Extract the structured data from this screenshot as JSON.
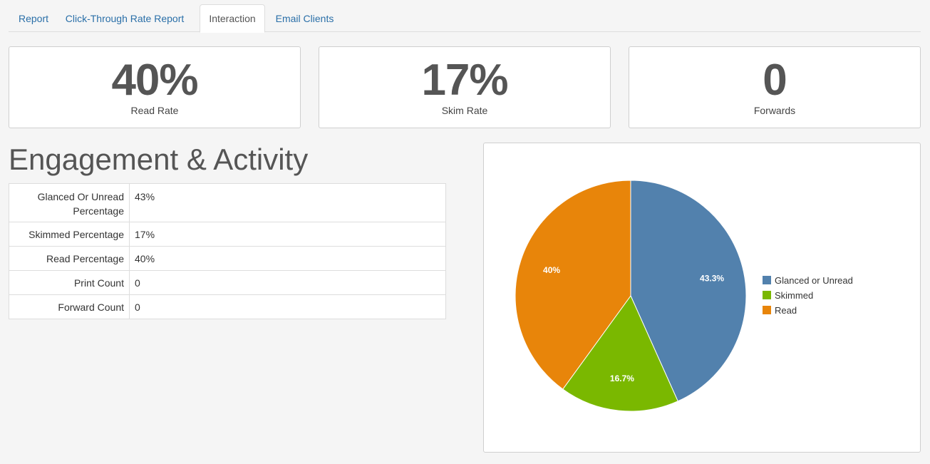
{
  "tabs": [
    {
      "label": "Report",
      "active": false
    },
    {
      "label": "Click-Through Rate Report",
      "active": false
    },
    {
      "label": "Interaction",
      "active": true
    },
    {
      "label": "Email Clients",
      "active": false
    }
  ],
  "stats": [
    {
      "value": "40%",
      "label": "Read Rate"
    },
    {
      "value": "17%",
      "label": "Skim Rate"
    },
    {
      "value": "0",
      "label": "Forwards"
    }
  ],
  "section": {
    "title": "Engagement & Activity"
  },
  "table": {
    "rows": [
      {
        "label": "Glanced Or Unread Percentage",
        "value": "43%"
      },
      {
        "label": "Skimmed Percentage",
        "value": "17%"
      },
      {
        "label": "Read Percentage",
        "value": "40%"
      },
      {
        "label": "Print Count",
        "value": "0"
      },
      {
        "label": "Forward Count",
        "value": "0"
      }
    ]
  },
  "chart_data": {
    "type": "pie",
    "categories": [
      "Glanced or Unread",
      "Skimmed",
      "Read"
    ],
    "values": [
      43.3,
      16.7,
      40
    ],
    "slice_labels": [
      "43.3%",
      "16.7%",
      "40%"
    ],
    "colors": [
      "#5281ad",
      "#7ab800",
      "#e8850a"
    ],
    "legend_position": "right"
  }
}
